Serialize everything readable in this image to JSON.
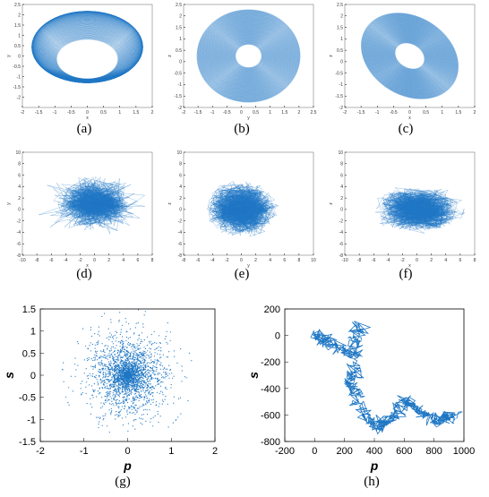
{
  "colors": {
    "series": "#1f77c4",
    "axis": "#444444",
    "frame": "#000000"
  },
  "chart_data": [
    {
      "id": "a",
      "caption": "(a)",
      "type": "line",
      "view": "3d-projection",
      "xlim": [
        -2,
        2
      ],
      "ylim": [
        -2.5,
        2.5
      ],
      "xticks": [
        "-2",
        "-1.5",
        "-1",
        "-0.5",
        "0",
        "0.5",
        "1",
        "1.5",
        "2"
      ],
      "yticks": [
        "-2",
        "-1.5",
        "-1",
        "-0.5",
        "0",
        "0.5",
        "1",
        "1.5",
        "2",
        "2.5"
      ],
      "xlabel": "x",
      "ylabel": "y",
      "extra_label": "",
      "shape": "bowl"
    },
    {
      "id": "b",
      "caption": "(b)",
      "type": "line",
      "view": "3d-projection",
      "xlim": [
        -2,
        2.5
      ],
      "ylim": [
        -2,
        2.5
      ],
      "xticks": [
        "-2",
        "-1.5",
        "-1",
        "-0.5",
        "0",
        "0.5",
        "1",
        "1.5",
        "2",
        "2.5"
      ],
      "yticks": [
        "-2",
        "-1.5",
        "-1",
        "-0.5",
        "0",
        "0.5",
        "1",
        "1.5",
        "2",
        "2.5"
      ],
      "xlabel": "y",
      "ylabel": "z",
      "extra_label": "",
      "shape": "disc"
    },
    {
      "id": "c",
      "caption": "(c)",
      "type": "line",
      "view": "3d-projection",
      "xlim": [
        -2,
        2
      ],
      "ylim": [
        -2,
        2.5
      ],
      "xticks": [
        "-2",
        "-1.5",
        "-1",
        "-0.5",
        "0",
        "0.5",
        "1",
        "1.5",
        "2"
      ],
      "yticks": [
        "-2",
        "-1.5",
        "-1",
        "-0.5",
        "0",
        "0.5",
        "1",
        "1.5",
        "2",
        "2.5"
      ],
      "xlabel": "x",
      "ylabel": "z",
      "extra_label": "",
      "shape": "tilted"
    },
    {
      "id": "d",
      "caption": "(d)",
      "type": "line",
      "xlim": [
        -10,
        8
      ],
      "ylim": [
        -8,
        10
      ],
      "xticks": [
        "-10",
        "-8",
        "-6",
        "-4",
        "-2",
        "0",
        "2",
        "4",
        "6",
        "8"
      ],
      "yticks": [
        "-8",
        "-6",
        "-4",
        "-2",
        "0",
        "2",
        "4",
        "6",
        "8",
        "10"
      ],
      "xlabel": "x",
      "ylabel": "y",
      "shape": "tangle"
    },
    {
      "id": "e",
      "caption": "(e)",
      "type": "line",
      "xlim": [
        -8,
        10
      ],
      "ylim": [
        -8,
        10
      ],
      "xticks": [
        "-8",
        "-6",
        "-4",
        "-2",
        "0",
        "2",
        "4",
        "6",
        "8",
        "10"
      ],
      "yticks": [
        "-8",
        "-6",
        "-4",
        "-2",
        "0",
        "2",
        "4",
        "6",
        "8",
        "10"
      ],
      "xlabel": "y",
      "ylabel": "z",
      "shape": "blob"
    },
    {
      "id": "f",
      "caption": "(f)",
      "type": "line",
      "xlim": [
        -10,
        8
      ],
      "ylim": [
        -8,
        10
      ],
      "xticks": [
        "-10",
        "-8",
        "-6",
        "-4",
        "-2",
        "0",
        "2",
        "4",
        "6",
        "8"
      ],
      "yticks": [
        "-8",
        "-6",
        "-4",
        "-2",
        "0",
        "2",
        "4",
        "6",
        "8",
        "10"
      ],
      "xlabel": "x",
      "ylabel": "z",
      "shape": "butterfly"
    },
    {
      "id": "g",
      "caption": "(g)",
      "type": "scatter",
      "xlim": [
        -2,
        2
      ],
      "ylim": [
        -1.5,
        1.5
      ],
      "xticks": [
        "-2",
        "-1",
        "0",
        "1",
        "2"
      ],
      "yticks": [
        "-1.5",
        "-1",
        "-0.5",
        "0",
        "0.5",
        "1",
        "1.5"
      ],
      "xlabel": "p",
      "ylabel": "s",
      "distribution": {
        "center": [
          0,
          0
        ],
        "radius": 1.5
      }
    },
    {
      "id": "h",
      "caption": "(h)",
      "type": "line",
      "xlim": [
        -200,
        1000
      ],
      "ylim": [
        -800,
        200
      ],
      "xticks": [
        "-200",
        "0",
        "200",
        "400",
        "600",
        "800",
        "1000"
      ],
      "yticks": [
        "-800",
        "-600",
        "-400",
        "-200",
        "0",
        "200"
      ],
      "xlabel": "p",
      "ylabel": "s",
      "path": [
        [
          0,
          0
        ],
        [
          60,
          -30
        ],
        [
          150,
          -80
        ],
        [
          250,
          -150
        ],
        [
          300,
          80
        ],
        [
          280,
          -250
        ],
        [
          220,
          -350
        ],
        [
          280,
          -450
        ],
        [
          350,
          -600
        ],
        [
          420,
          -700
        ],
        [
          470,
          -650
        ],
        [
          550,
          -600
        ],
        [
          600,
          -480
        ],
        [
          680,
          -550
        ],
        [
          760,
          -620
        ],
        [
          840,
          -650
        ],
        [
          880,
          -600
        ],
        [
          940,
          -620
        ]
      ]
    }
  ]
}
